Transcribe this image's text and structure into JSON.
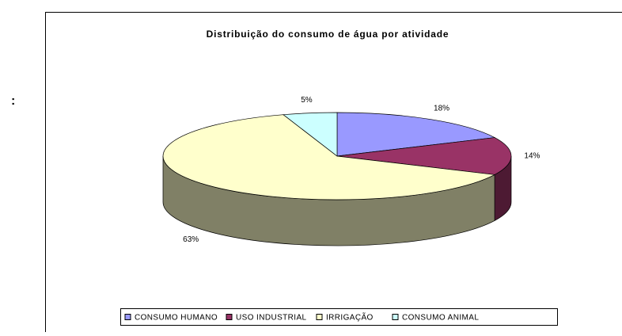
{
  "side_mark": ":",
  "chart_data": {
    "type": "pie3d",
    "title": "Distribuição do consumo de água por atividade",
    "categories": [
      "CONSUMO HUMANO",
      "USO INDUSTRIAL",
      "IRRIGAÇÃO",
      "CONSUMO ANIMAL"
    ],
    "values": [
      18,
      14,
      63,
      5
    ],
    "value_labels": [
      "18%",
      "14%",
      "63%",
      "5%"
    ],
    "colors": [
      "#9999ff",
      "#993366",
      "#ffffcc",
      "#ccffff"
    ],
    "legend": "bottom"
  }
}
